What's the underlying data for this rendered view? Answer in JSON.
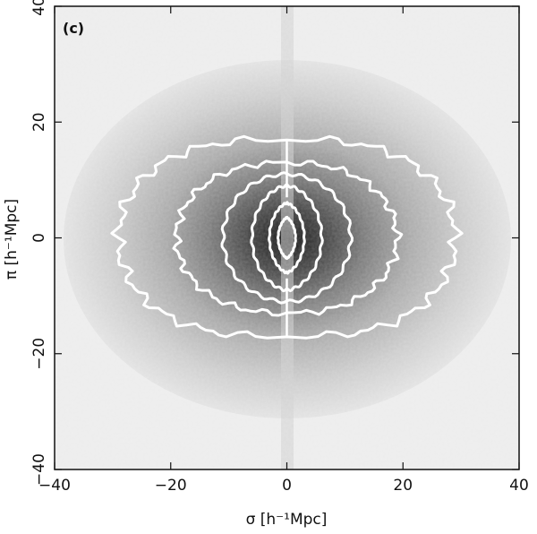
{
  "chart_data": {
    "type": "heatmap",
    "panel_label": "(c)",
    "xlabel": "σ   [h⁻¹Mpc]",
    "ylabel": "π   [h⁻¹Mpc]",
    "xlim": [
      -40,
      40
    ],
    "ylim": [
      -40,
      40
    ],
    "xticks": [
      -40,
      -20,
      0,
      20,
      40
    ],
    "yticks": [
      -40,
      -20,
      0,
      20,
      40
    ],
    "xtick_labels": [
      "−40",
      "−20",
      "0",
      "20",
      "40"
    ],
    "ytick_labels": [
      "−40",
      "−20",
      "0",
      "20",
      "40"
    ],
    "grid": false,
    "colormap": "grayscale (dark = high density)",
    "contour_color": "#ffffff",
    "contours": [
      {
        "level": 1,
        "sigma_halfwidth": 29,
        "pi_halfheight": 17
      },
      {
        "level": 2,
        "sigma_halfwidth": 19,
        "pi_halfheight": 13
      },
      {
        "level": 3,
        "sigma_halfwidth": 11,
        "pi_halfheight": 11
      },
      {
        "level": 4,
        "sigma_halfwidth": 6,
        "pi_halfheight": 9
      },
      {
        "level": 5,
        "sigma_halfwidth": 3,
        "pi_halfheight": 6
      },
      {
        "level": 6,
        "sigma_halfwidth": 1.5,
        "pi_halfheight": 3.5
      }
    ]
  }
}
